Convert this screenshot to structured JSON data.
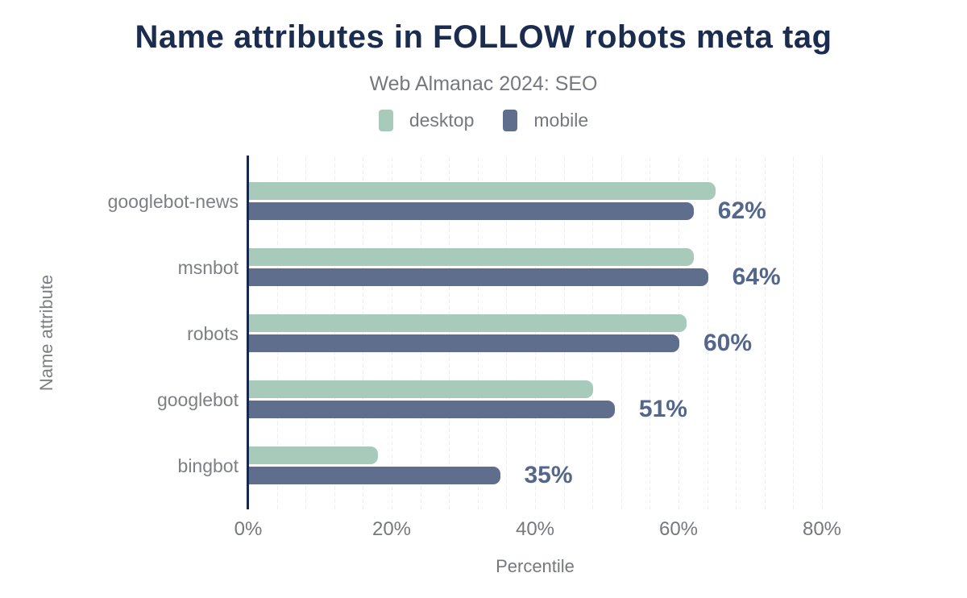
{
  "header": {
    "title": "Name attributes in FOLLOW robots meta tag",
    "subtitle": "Web Almanac 2024: SEO"
  },
  "legend": {
    "position": "top-center",
    "items": [
      {
        "label": "desktop",
        "color": "#a8cabb"
      },
      {
        "label": "mobile",
        "color": "#5f6e8c"
      }
    ]
  },
  "chart_data": {
    "type": "bar",
    "orientation": "horizontal",
    "title": "Name attributes in FOLLOW robots meta tag",
    "subtitle": "Web Almanac 2024: SEO",
    "xlabel": "Percentile",
    "ylabel": "Name attribute",
    "xlim": [
      0,
      80
    ],
    "grid": "faint vertical minor gridlines every 4%, dark vertical axis line at 0",
    "categories": [
      "googlebot-news",
      "msnbot",
      "robots",
      "googlebot",
      "bingbot"
    ],
    "series": [
      {
        "name": "desktop",
        "color": "#a8cabb",
        "values": [
          65,
          62,
          61,
          48,
          18
        ]
      },
      {
        "name": "mobile",
        "color": "#5f6e8c",
        "values": [
          62,
          64,
          60,
          51,
          35
        ]
      }
    ],
    "data_labels": {
      "labeled_series": "mobile",
      "values": [
        "62%",
        "64%",
        "60%",
        "51%",
        "35%"
      ]
    },
    "x_ticks": [
      {
        "label": "0%",
        "value": 0
      },
      {
        "label": "20%",
        "value": 20
      },
      {
        "label": "40%",
        "value": 40
      },
      {
        "label": "60%",
        "value": 60
      },
      {
        "label": "80%",
        "value": 80
      }
    ]
  },
  "colors": {
    "background": "#ffffff",
    "title": "#1b2c4e",
    "axis_line": "#16294c",
    "data_label": "#54678a",
    "muted_text": "#75787e",
    "category_text": "#7c7f84",
    "gridline": "#ededf2"
  }
}
